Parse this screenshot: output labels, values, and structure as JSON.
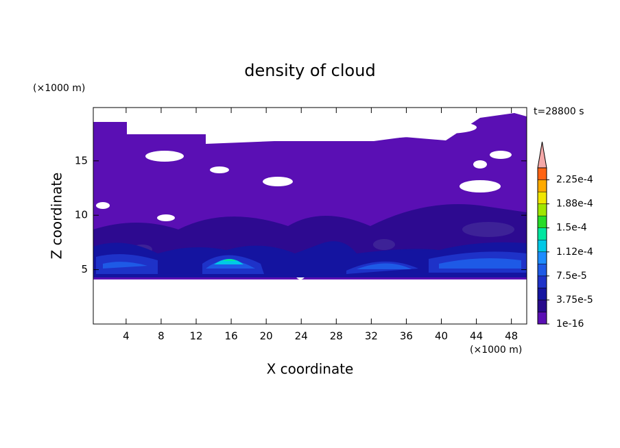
{
  "chart_data": {
    "type": "contour",
    "title": "density of cloud",
    "xlabel": "X coordinate",
    "ylabel": "Z coordinate",
    "x_unit": "(×1000 m)",
    "y_unit": "(×1000 m)",
    "annotation": "t=28800 s",
    "xlim": [
      0.25,
      49.75
    ],
    "xticks": [
      4,
      8,
      12,
      16,
      20,
      24,
      28,
      32,
      36,
      40,
      44,
      48
    ],
    "ylim": [
      0,
      19.9
    ],
    "yticks": [
      5,
      10,
      15
    ],
    "colorbar": {
      "clim": [
        1e-16,
        0.00024375
      ],
      "ticks": [
        {
          "value": 1e-16,
          "label": "1e-16"
        },
        {
          "value": 3.75e-05,
          "label": "3.75e-5"
        },
        {
          "value": 7.5e-05,
          "label": "7.5e-5"
        },
        {
          "value": 0.0001125,
          "label": "1.12e-4"
        },
        {
          "value": 0.00015,
          "label": "1.5e-4"
        },
        {
          "value": 0.0001875,
          "label": "1.88e-4"
        },
        {
          "value": 0.000225,
          "label": "2.25e-4"
        }
      ],
      "colors": [
        "#5a0fb4",
        "#280a8c",
        "#1414a0",
        "#1e32c8",
        "#1e5ae6",
        "#1e8cff",
        "#00c8e6",
        "#00e6a0",
        "#28dc28",
        "#a0e600",
        "#f0e600",
        "#ffaa00",
        "#ff6414"
      ],
      "extend_color": "#f4a8a8"
    }
  }
}
